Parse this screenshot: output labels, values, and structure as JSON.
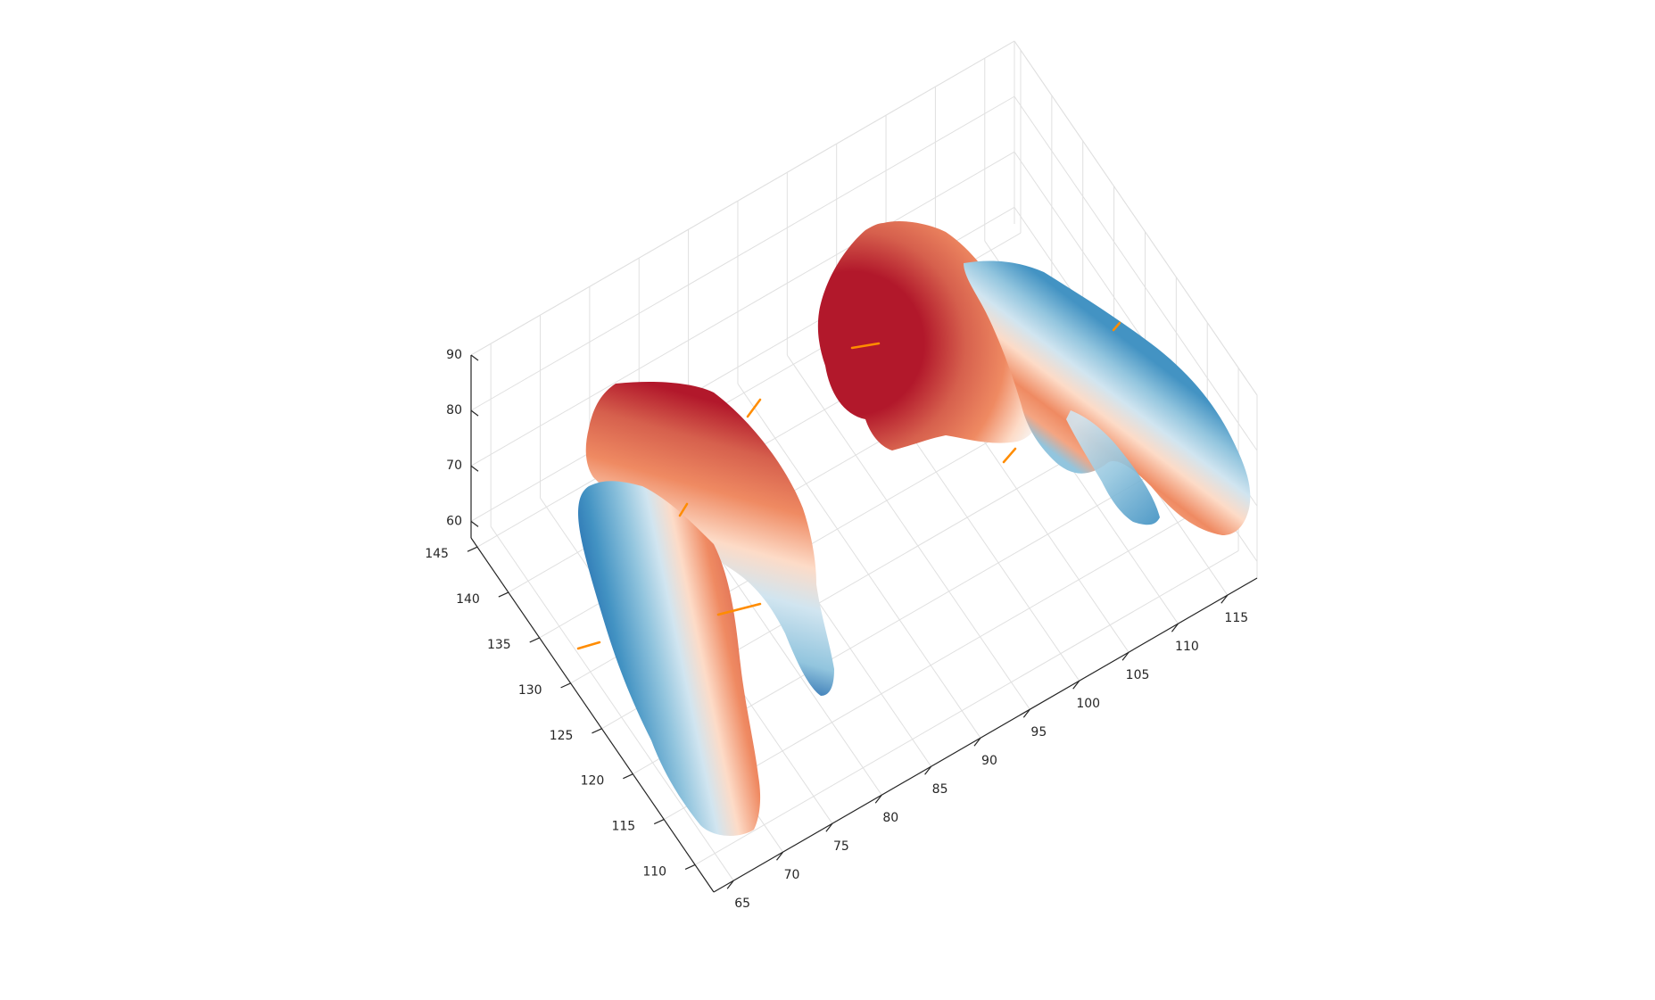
{
  "chart_data": {
    "type": "surface3d",
    "title": "",
    "xlabel": "",
    "ylabel": "",
    "zlabel": "",
    "x_axis": {
      "ticks": [
        65,
        70,
        75,
        80,
        85,
        90,
        95,
        100,
        105,
        110,
        115
      ],
      "tick_labels": [
        "65",
        "70",
        "75",
        "80",
        "85",
        "90",
        "95",
        "100",
        "105",
        "110",
        "115"
      ],
      "range": [
        63,
        118
      ]
    },
    "y_axis": {
      "ticks": [
        110,
        115,
        120,
        125,
        130,
        135,
        140,
        145
      ],
      "tick_labels": [
        "110",
        "115",
        "120",
        "125",
        "130",
        "135",
        "140",
        "145"
      ],
      "range": [
        107,
        146
      ]
    },
    "z_axis": {
      "ticks": [
        60,
        70,
        80,
        90
      ],
      "tick_labels": [
        "60",
        "70",
        "80",
        "90"
      ],
      "range": [
        57,
        90
      ]
    },
    "grid": true,
    "colormap": "red-white-blue diverging",
    "colors": {
      "red": "#b2182b",
      "light_red": "#ef8a62",
      "pale_red": "#fddbc7",
      "white": "#f7f7f7",
      "pale_blue": "#d1e5f0",
      "light_blue": "#92c5de",
      "blue": "#4393c3",
      "normal_vectors": "#ff8c00",
      "grid": "#e0e0e0",
      "axis": "#262626"
    }
  }
}
